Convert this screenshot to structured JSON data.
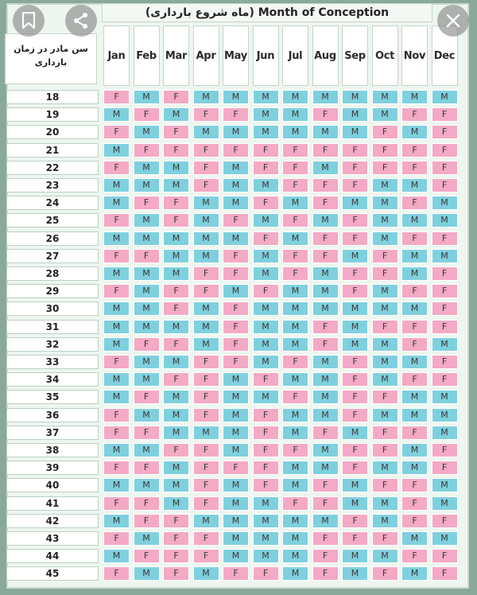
{
  "title": "(ماه شروع بارداری) Month of Conception",
  "age_header": [
    "سن مادر در زمان",
    "بارداری"
  ],
  "months": [
    "Jan",
    "Feb",
    "Mar",
    "Apr",
    "May",
    "Jun",
    "Jul",
    "Aug",
    "Sep",
    "Oct",
    "Nov",
    "Dec"
  ],
  "rows": [
    {
      "age": "18",
      "cells": [
        "F",
        "M",
        "F",
        "M",
        "M",
        "M",
        "M",
        "M",
        "M",
        "M",
        "M",
        "M"
      ]
    },
    {
      "age": "19",
      "cells": [
        "M",
        "F",
        "M",
        "F",
        "F",
        "M",
        "M",
        "F",
        "M",
        "M",
        "F",
        "F"
      ]
    },
    {
      "age": "20",
      "cells": [
        "F",
        "M",
        "F",
        "M",
        "M",
        "M",
        "M",
        "M",
        "M",
        "F",
        "M",
        "F"
      ]
    },
    {
      "age": "21",
      "cells": [
        "M",
        "F",
        "F",
        "F",
        "F",
        "F",
        "F",
        "F",
        "F",
        "F",
        "F",
        "F"
      ]
    },
    {
      "age": "22",
      "cells": [
        "F",
        "M",
        "M",
        "F",
        "M",
        "F",
        "F",
        "M",
        "F",
        "F",
        "F",
        "F"
      ]
    },
    {
      "age": "23",
      "cells": [
        "M",
        "M",
        "M",
        "F",
        "M",
        "M",
        "F",
        "F",
        "F",
        "M",
        "M",
        "F"
      ]
    },
    {
      "age": "24",
      "cells": [
        "M",
        "F",
        "F",
        "M",
        "M",
        "F",
        "M",
        "F",
        "M",
        "M",
        "F",
        "M"
      ]
    },
    {
      "age": "25",
      "cells": [
        "F",
        "M",
        "F",
        "M",
        "F",
        "M",
        "F",
        "M",
        "F",
        "M",
        "M",
        "M"
      ]
    },
    {
      "age": "26",
      "cells": [
        "M",
        "M",
        "M",
        "M",
        "M",
        "F",
        "M",
        "F",
        "F",
        "M",
        "F",
        "F"
      ]
    },
    {
      "age": "27",
      "cells": [
        "F",
        "F",
        "M",
        "M",
        "F",
        "M",
        "F",
        "F",
        "M",
        "F",
        "M",
        "M"
      ]
    },
    {
      "age": "28",
      "cells": [
        "M",
        "M",
        "M",
        "F",
        "F",
        "M",
        "F",
        "M",
        "F",
        "F",
        "M",
        "F"
      ]
    },
    {
      "age": "29",
      "cells": [
        "F",
        "M",
        "F",
        "F",
        "M",
        "F",
        "M",
        "M",
        "F",
        "M",
        "F",
        "F"
      ]
    },
    {
      "age": "30",
      "cells": [
        "M",
        "M",
        "F",
        "M",
        "F",
        "M",
        "M",
        "M",
        "M",
        "M",
        "M",
        "F"
      ]
    },
    {
      "age": "31",
      "cells": [
        "M",
        "M",
        "M",
        "M",
        "F",
        "M",
        "M",
        "F",
        "M",
        "F",
        "F",
        "F"
      ]
    },
    {
      "age": "32",
      "cells": [
        "M",
        "F",
        "F",
        "M",
        "F",
        "M",
        "M",
        "F",
        "M",
        "M",
        "F",
        "M"
      ]
    },
    {
      "age": "33",
      "cells": [
        "F",
        "M",
        "M",
        "F",
        "F",
        "M",
        "F",
        "M",
        "F",
        "M",
        "M",
        "F"
      ]
    },
    {
      "age": "34",
      "cells": [
        "M",
        "M",
        "F",
        "F",
        "M",
        "F",
        "M",
        "M",
        "F",
        "M",
        "F",
        "F"
      ]
    },
    {
      "age": "35",
      "cells": [
        "M",
        "F",
        "M",
        "F",
        "M",
        "M",
        "F",
        "M",
        "F",
        "F",
        "M",
        "M"
      ]
    },
    {
      "age": "36",
      "cells": [
        "F",
        "M",
        "M",
        "F",
        "M",
        "F",
        "M",
        "M",
        "F",
        "M",
        "M",
        "M"
      ]
    },
    {
      "age": "37",
      "cells": [
        "F",
        "F",
        "M",
        "M",
        "M",
        "F",
        "M",
        "F",
        "M",
        "F",
        "F",
        "M"
      ]
    },
    {
      "age": "38",
      "cells": [
        "M",
        "M",
        "F",
        "F",
        "M",
        "F",
        "F",
        "M",
        "F",
        "F",
        "M",
        "F"
      ]
    },
    {
      "age": "39",
      "cells": [
        "F",
        "F",
        "M",
        "F",
        "F",
        "F",
        "M",
        "M",
        "F",
        "M",
        "M",
        "F"
      ]
    },
    {
      "age": "40",
      "cells": [
        "M",
        "M",
        "M",
        "F",
        "M",
        "F",
        "M",
        "F",
        "M",
        "F",
        "F",
        "M"
      ]
    },
    {
      "age": "41",
      "cells": [
        "F",
        "F",
        "M",
        "F",
        "M",
        "M",
        "F",
        "F",
        "M",
        "M",
        "F",
        "M"
      ]
    },
    {
      "age": "42",
      "cells": [
        "M",
        "F",
        "F",
        "M",
        "M",
        "M",
        "M",
        "M",
        "F",
        "M",
        "F",
        "F"
      ]
    },
    {
      "age": "43",
      "cells": [
        "F",
        "M",
        "F",
        "F",
        "M",
        "M",
        "M",
        "F",
        "F",
        "F",
        "M",
        "M"
      ]
    },
    {
      "age": "44",
      "cells": [
        "M",
        "F",
        "F",
        "F",
        "M",
        "M",
        "M",
        "F",
        "M",
        "M",
        "F",
        "F"
      ]
    },
    {
      "age": "45",
      "cells": [
        "F",
        "M",
        "F",
        "M",
        "F",
        "F",
        "M",
        "F",
        "M",
        "F",
        "M",
        "F"
      ]
    }
  ],
  "colors": {
    "M": "#7fd0de",
    "F": "#f4a9c5"
  },
  "overlay_icons": [
    "bookmark-icon",
    "share-icon",
    "close-icon"
  ]
}
